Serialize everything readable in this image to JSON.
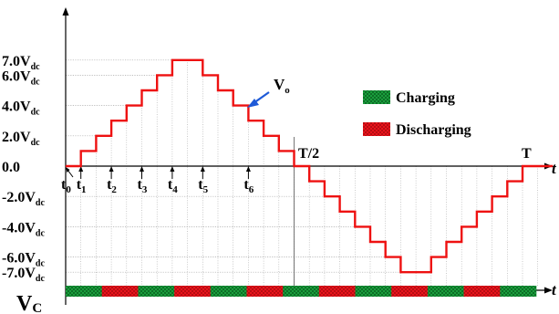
{
  "colors": {
    "waveform": "#ee1111",
    "axis": "#000000",
    "grid": "#a8a8a8",
    "charging": "#1a9e3c",
    "discharging": "#e8141c",
    "vo_label": "#1414cc",
    "vo_arrow": "#1e5ad8",
    "vc_label": "#1414cc"
  },
  "y_labels": [
    {
      "main": "7.0V",
      "sub": "dc",
      "level": 7
    },
    {
      "main": "6.0V",
      "sub": "dc",
      "level": 6
    },
    {
      "main": "4.0V",
      "sub": "dc",
      "level": 4
    },
    {
      "main": "2.0V",
      "sub": "dc",
      "level": 2
    },
    {
      "main": "0.0",
      "sub": "",
      "level": 0
    },
    {
      "main": "-2.0V",
      "sub": "dc",
      "level": -2
    },
    {
      "main": "-4.0V",
      "sub": "dc",
      "level": -4
    },
    {
      "main": "-6.0V",
      "sub": "dc",
      "level": -6
    },
    {
      "main": "-7.0V",
      "sub": "dc",
      "level": -7
    }
  ],
  "time_marks": [
    {
      "main": "t",
      "sub": "0",
      "step": 0
    },
    {
      "main": "t",
      "sub": "1",
      "step": 1
    },
    {
      "main": "t",
      "sub": "2",
      "step": 3
    },
    {
      "main": "t",
      "sub": "3",
      "step": 5
    },
    {
      "main": "t",
      "sub": "4",
      "step": 7
    },
    {
      "main": "t",
      "sub": "5",
      "step": 9
    },
    {
      "main": "t",
      "sub": "6",
      "step": 12
    }
  ],
  "half_period_label": "T/2",
  "period_label": "T",
  "t_axis_label": "t",
  "vo_label": {
    "main": "V",
    "sub": "o"
  },
  "vc_label": {
    "main": "V",
    "sub": "C"
  },
  "legend": {
    "charging": "Charging",
    "discharging": "Discharging"
  },
  "waveform_levels": [
    0,
    1,
    2,
    3,
    4,
    5,
    6,
    7,
    7,
    6,
    5,
    4,
    3,
    2,
    1,
    0,
    -1,
    -2,
    -3,
    -4,
    -5,
    -6,
    -7,
    -7,
    -6,
    -5,
    -4,
    -3,
    -2,
    -1,
    0,
    0
  ],
  "capacitor_states": [
    "charging",
    "discharging",
    "charging",
    "discharging",
    "charging",
    "discharging",
    "charging",
    "discharging",
    "charging",
    "discharging",
    "charging",
    "discharging",
    "charging"
  ]
}
